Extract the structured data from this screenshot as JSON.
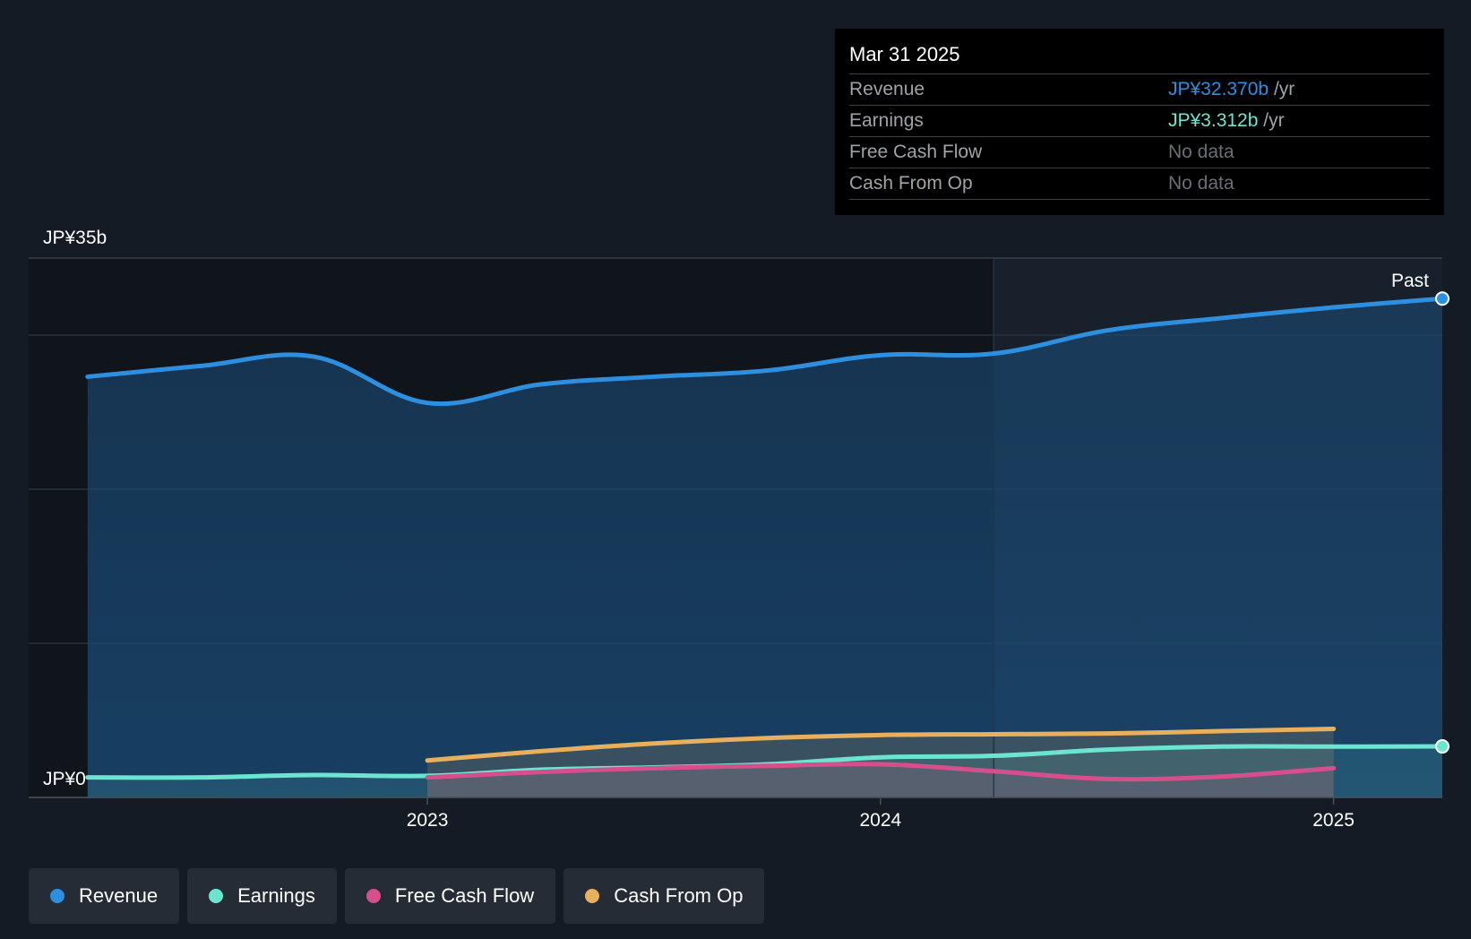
{
  "tooltip": {
    "date": "Mar 31 2025",
    "rows": [
      {
        "label": "Revenue",
        "value": "JP¥32.370b",
        "unit": " /yr",
        "color": "#2d8fe0"
      },
      {
        "label": "Earnings",
        "value": "JP¥3.312b",
        "unit": " /yr",
        "color": "#6ce5d0"
      },
      {
        "label": "Free Cash Flow",
        "value": "No data",
        "unit": "",
        "color": ""
      },
      {
        "label": "Cash From Op",
        "value": "No data",
        "unit": "",
        "color": ""
      }
    ]
  },
  "legend": [
    {
      "label": "Revenue",
      "color": "#2d8fe0"
    },
    {
      "label": "Earnings",
      "color": "#6ce5d0"
    },
    {
      "label": "Free Cash Flow",
      "color": "#d64f8c"
    },
    {
      "label": "Cash From Op",
      "color": "#e8b05c"
    }
  ],
  "chart_data": {
    "type": "line",
    "title": "",
    "y_unit": "JP¥ billions",
    "ylim": [
      0,
      35
    ],
    "y_tick_labels": [
      {
        "value": 35,
        "label": "JP¥35b"
      },
      {
        "value": 0,
        "label": "JP¥0"
      }
    ],
    "y_gridlines": [
      35,
      30,
      20,
      10,
      0
    ],
    "xlim": [
      2022.12,
      2025.24
    ],
    "x_ticks": [
      {
        "value": 2023.0,
        "label": "2023"
      },
      {
        "value": 2024.0,
        "label": "2024"
      },
      {
        "value": 2025.0,
        "label": "2025"
      }
    ],
    "past_boundary": 2024.25,
    "past_label": "Past",
    "series": [
      {
        "name": "Revenue",
        "color": "#2d8fe0",
        "filled": true,
        "end_marker": true,
        "points": [
          [
            2022.25,
            27.3
          ],
          [
            2022.5,
            28.0
          ],
          [
            2022.75,
            28.6
          ],
          [
            2023.0,
            25.6
          ],
          [
            2023.25,
            26.8
          ],
          [
            2023.5,
            27.3
          ],
          [
            2023.75,
            27.7
          ],
          [
            2024.0,
            28.7
          ],
          [
            2024.25,
            28.8
          ],
          [
            2024.5,
            30.3
          ],
          [
            2024.75,
            31.1
          ],
          [
            2025.0,
            31.8
          ],
          [
            2025.24,
            32.37
          ]
        ]
      },
      {
        "name": "Earnings",
        "color": "#6ce5d0",
        "filled": true,
        "end_marker": true,
        "points": [
          [
            2022.25,
            1.3
          ],
          [
            2022.5,
            1.3
          ],
          [
            2022.75,
            1.45
          ],
          [
            2023.0,
            1.4
          ],
          [
            2023.25,
            1.8
          ],
          [
            2023.5,
            1.95
          ],
          [
            2023.75,
            2.15
          ],
          [
            2024.0,
            2.6
          ],
          [
            2024.25,
            2.7
          ],
          [
            2024.5,
            3.1
          ],
          [
            2024.75,
            3.3
          ],
          [
            2025.0,
            3.3
          ],
          [
            2025.24,
            3.312
          ]
        ]
      },
      {
        "name": "Free Cash Flow",
        "color": "#d64f8c",
        "filled": true,
        "end_marker": false,
        "points": [
          [
            2023.0,
            1.3
          ],
          [
            2023.25,
            1.65
          ],
          [
            2023.5,
            1.9
          ],
          [
            2023.75,
            2.05
          ],
          [
            2024.0,
            2.15
          ],
          [
            2024.25,
            1.7
          ],
          [
            2024.5,
            1.2
          ],
          [
            2024.75,
            1.35
          ],
          [
            2025.0,
            1.9
          ]
        ]
      },
      {
        "name": "Cash From Op",
        "color": "#e8b05c",
        "filled": true,
        "end_marker": false,
        "points": [
          [
            2023.0,
            2.4
          ],
          [
            2023.25,
            3.0
          ],
          [
            2023.5,
            3.5
          ],
          [
            2023.75,
            3.85
          ],
          [
            2024.0,
            4.05
          ],
          [
            2024.25,
            4.1
          ],
          [
            2024.5,
            4.15
          ],
          [
            2024.75,
            4.3
          ],
          [
            2025.0,
            4.45
          ]
        ]
      }
    ]
  }
}
